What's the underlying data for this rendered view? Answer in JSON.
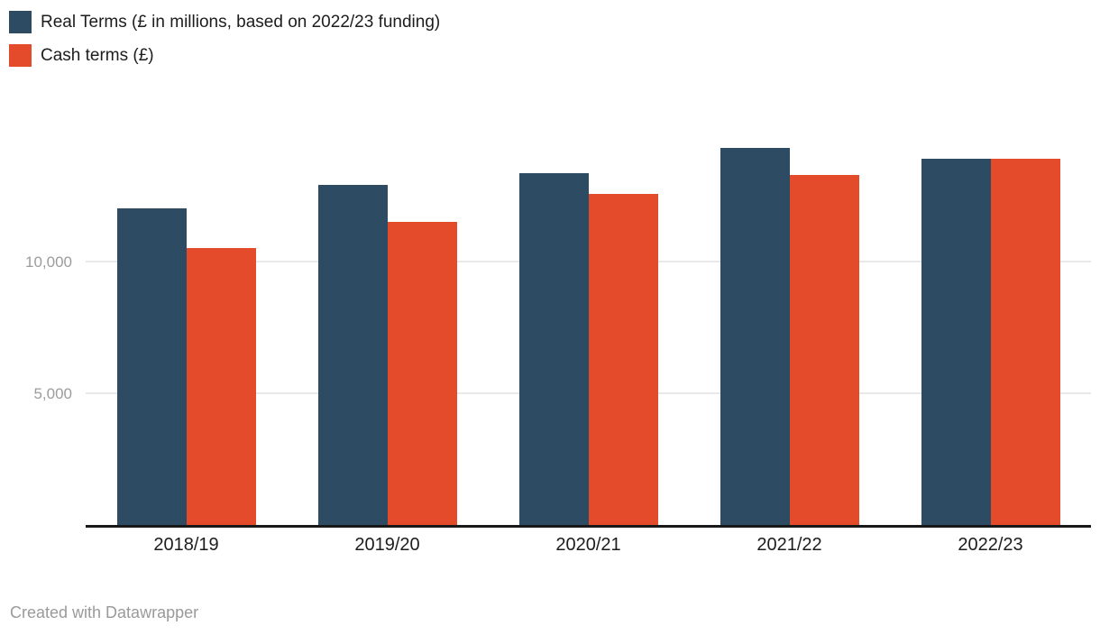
{
  "footer": {
    "credit": "Created with Datawrapper"
  },
  "colors": {
    "real_terms": "#2d4c63",
    "cash_terms": "#e44b2a",
    "gridline": "#e9e9e9",
    "axis_line": "#181818",
    "y_tick_label": "#9c9c9c",
    "category_label": "#1d1d1d",
    "credit_text": "#9a9a9a",
    "background": "#ffffff"
  },
  "chart_data": {
    "type": "bar",
    "categories": [
      "2018/19",
      "2019/20",
      "2020/21",
      "2021/22",
      "2022/23"
    ],
    "series": [
      {
        "name": "Real Terms (£ in millions, based on 2022/23 funding)",
        "color": "#2d4c63",
        "values": [
          12050,
          12950,
          13400,
          14350,
          13950
        ]
      },
      {
        "name": "Cash terms (£)",
        "color": "#e44b2a",
        "values": [
          10550,
          11550,
          12600,
          13350,
          13950
        ]
      }
    ],
    "y_ticks": [
      5000,
      10000
    ],
    "y_tick_labels": [
      "5,000",
      "10,000"
    ],
    "ylim": [
      0,
      16900
    ],
    "grid": "horizontal",
    "legend_position": "top-left"
  }
}
